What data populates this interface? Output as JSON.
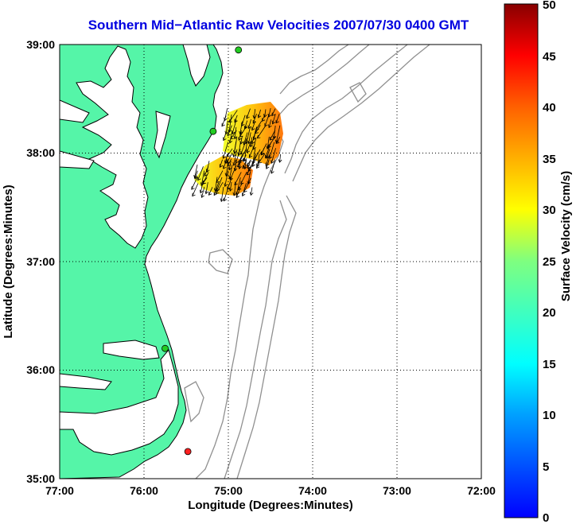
{
  "title": "Southern Mid−Atlantic Raw Velocities 2007/07/30 0400 GMT",
  "axes": {
    "xlabel": "Longitude (Degrees:Minutes)",
    "ylabel": "Latitude (Degrees:Minutes)",
    "x_ticks": [
      "77:00",
      "76:00",
      "75:00",
      "74:00",
      "73:00",
      "72:00"
    ],
    "y_ticks": [
      "35:00",
      "36:00",
      "37:00",
      "38:00",
      "39:00"
    ],
    "x_range_deg_west": [
      77,
      72
    ],
    "y_range_deg_north": [
      35,
      39
    ],
    "grid": "dotted"
  },
  "colorbar": {
    "label": "Surface Velocity (cm/s)",
    "min": 0,
    "max": 50,
    "ticks": [
      "0",
      "5",
      "10",
      "15",
      "20",
      "25",
      "30",
      "35",
      "40",
      "45",
      "50"
    ],
    "colormap": "jet"
  },
  "colors": {
    "land": "#55f5a8",
    "coast": "#000000",
    "bathymetry": "#909090",
    "title": "#0000e0"
  },
  "stations": [
    {
      "lon": -74.88,
      "lat": 38.95,
      "color": "#22cc22"
    },
    {
      "lon": -75.18,
      "lat": 38.2,
      "color": "#22cc22"
    },
    {
      "lon": -75.75,
      "lat": 36.2,
      "color": "#22cc22"
    },
    {
      "lon": -75.48,
      "lat": 35.25,
      "color": "#ff2020"
    }
  ]
}
